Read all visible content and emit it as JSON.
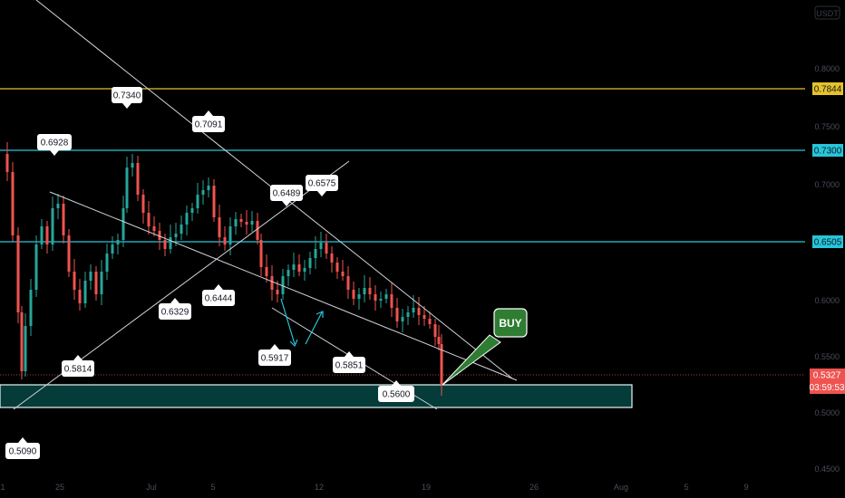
{
  "chart_data": {
    "type": "candlestick",
    "currency": "USDT",
    "y_ticks": [
      "0.8000",
      "0.7500",
      "0.7000",
      "0.6000",
      "0.5500",
      "0.5000",
      "0.4500"
    ],
    "x_ticks": [
      "25",
      "Jul",
      "5",
      "12",
      "19",
      "26",
      "Aug",
      "5",
      "9"
    ],
    "current_price": "0.5327",
    "countdown": "03:59:53",
    "horizontal_levels": [
      {
        "label": "0.7844",
        "value": 0.7844,
        "color": "#e5c229"
      },
      {
        "label": "0.7300",
        "value": 0.73,
        "color": "#26c6da"
      },
      {
        "label": "0.6505",
        "value": 0.6505,
        "color": "#26c6da"
      }
    ],
    "callouts": [
      {
        "label": "0.7340"
      },
      {
        "label": "0.6928"
      },
      {
        "label": "0.7091"
      },
      {
        "label": "0.6489"
      },
      {
        "label": "0.6575"
      },
      {
        "label": "0.6444"
      },
      {
        "label": "0.6329"
      },
      {
        "label": "0.5917"
      },
      {
        "label": "0.5851"
      },
      {
        "label": "0.5814"
      },
      {
        "label": "0.5600"
      },
      {
        "label": "0.5090"
      }
    ],
    "support_zone": {
      "low": 0.505,
      "high": 0.525
    },
    "annotation": "BUY",
    "colors": {
      "up": "#26a69a",
      "down": "#ef5350",
      "line": "#d1d4dc",
      "zone": "#0a6b68",
      "buy": "#2e7d32"
    }
  }
}
